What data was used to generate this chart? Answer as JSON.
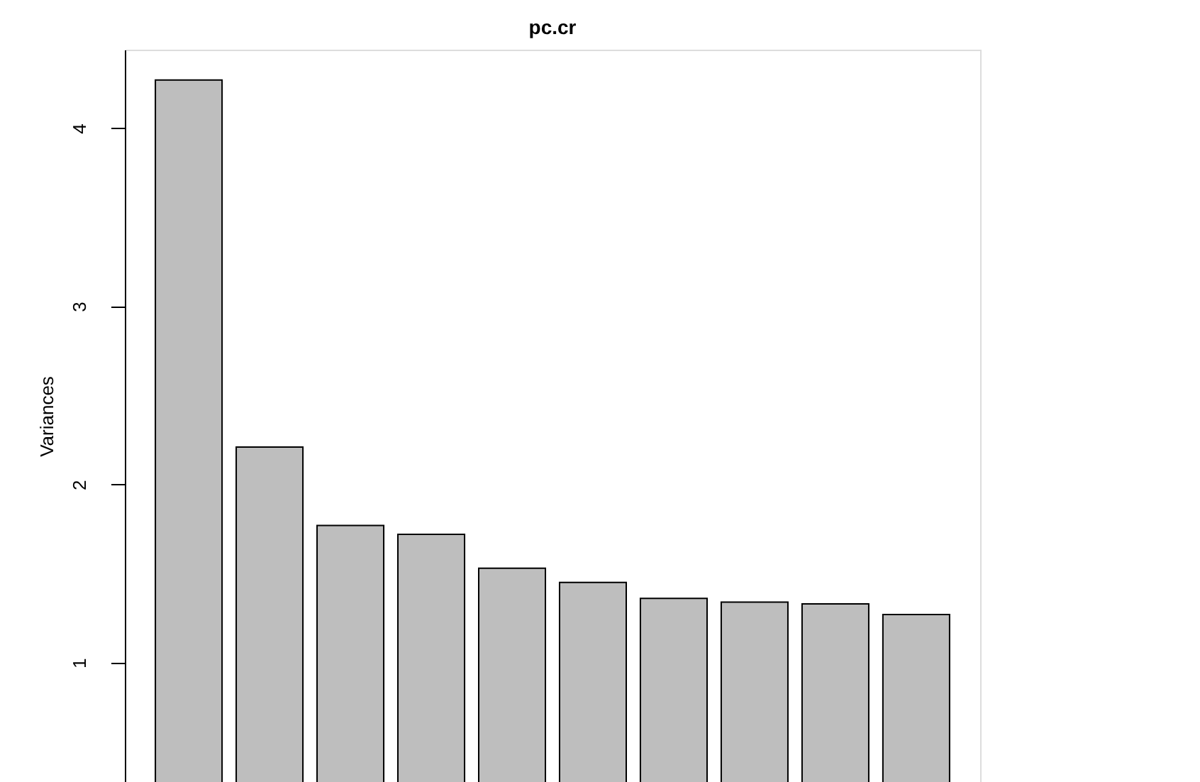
{
  "chart_data": {
    "type": "bar",
    "title": "pc.cr",
    "ylabel": "Variances",
    "categories": [
      null,
      null,
      null,
      null,
      null,
      null,
      null,
      null,
      null,
      null
    ],
    "values": [
      4.27,
      2.21,
      1.77,
      1.72,
      1.53,
      1.45,
      1.36,
      1.34,
      1.33,
      1.27
    ],
    "color": "#bebebe",
    "ylim": [
      0.33,
      4.44
    ],
    "yticks": [
      1,
      2,
      3,
      4
    ],
    "grid": false,
    "tick_labels": "y"
  }
}
